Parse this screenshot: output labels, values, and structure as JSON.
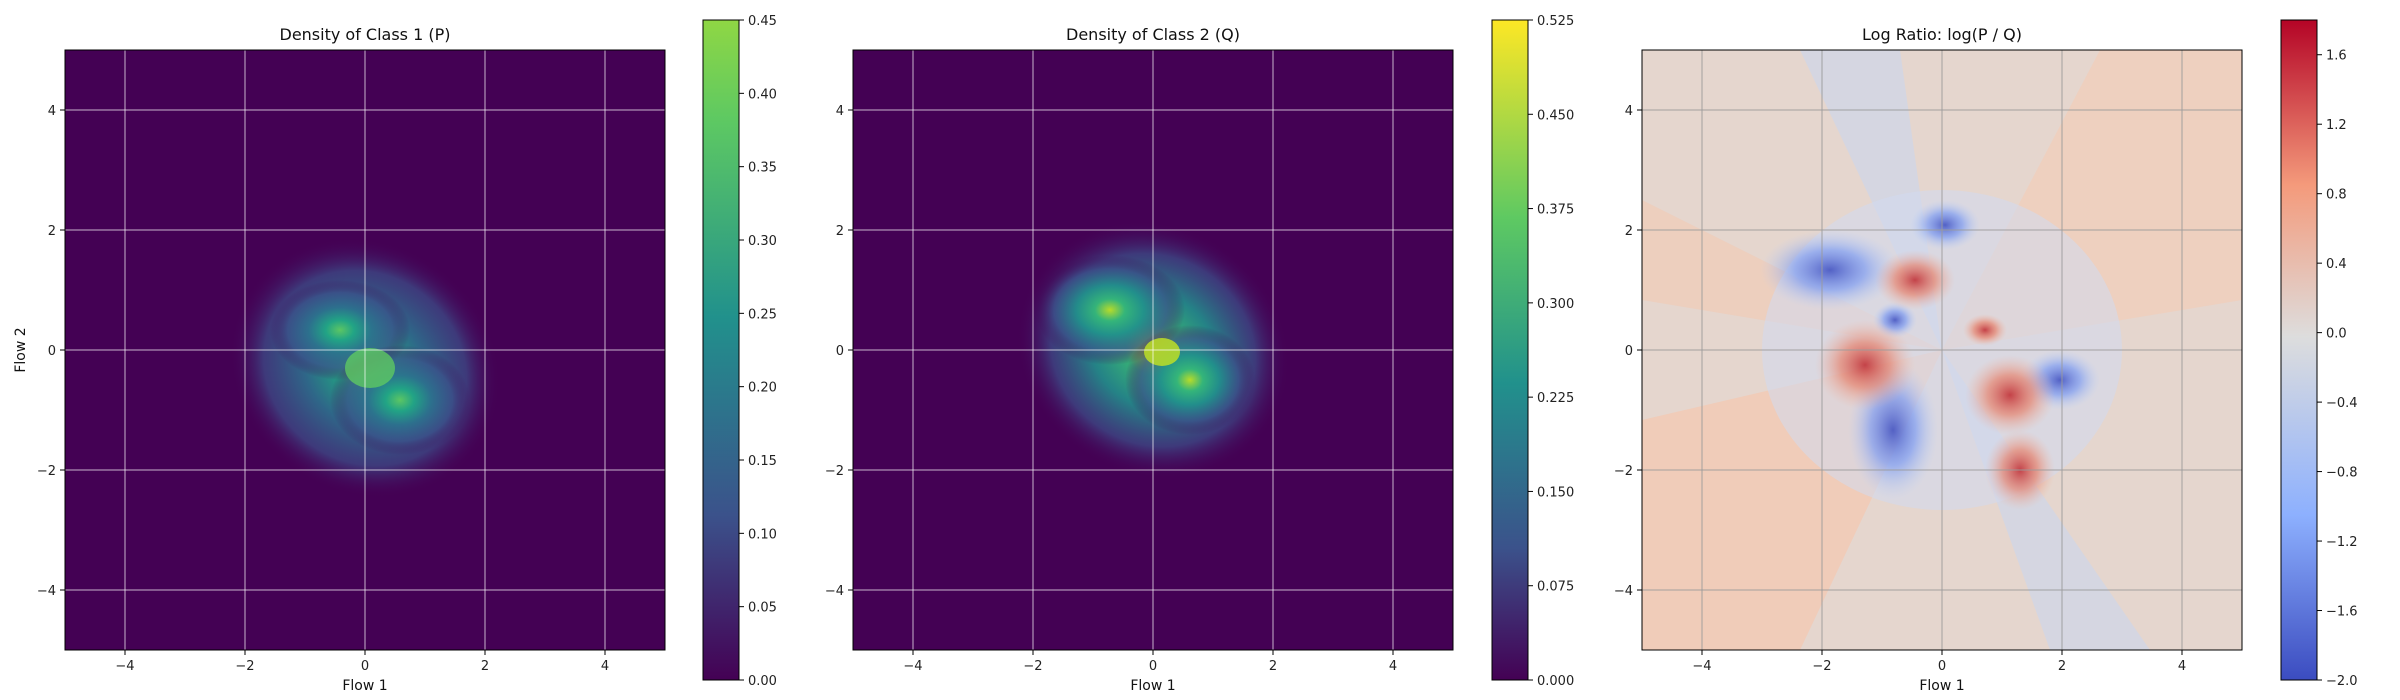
{
  "chart_data": [
    {
      "type": "heatmap",
      "title": "Density of Class 1 (P)",
      "xlabel": "Flow 1",
      "ylabel": "Flow 2",
      "xlim": [
        -5,
        5
      ],
      "ylim": [
        -5,
        5
      ],
      "xticks": [
        "−4",
        "−2",
        "0",
        "2",
        "4"
      ],
      "yticks": [
        "−4",
        "−2",
        "0",
        "2",
        "4"
      ],
      "grid": true,
      "colormap": "viridis",
      "colorbar": {
        "min": 0,
        "max": 0.45,
        "tick_values": [
          0,
          0.05,
          0.1,
          0.15,
          0.2,
          0.25,
          0.3,
          0.35,
          0.4,
          0.45
        ],
        "tick_labels": [
          "0.00",
          "0.05",
          "0.10",
          "0.15",
          "0.20",
          "0.25",
          "0.30",
          "0.35",
          "0.40",
          "0.45"
        ]
      },
      "blob": {
        "center": [
          0,
          -0.3
        ],
        "spread": [
          1.1,
          0.9
        ],
        "peak": 0.43
      }
    },
    {
      "type": "heatmap",
      "title": "Density of Class 2 (Q)",
      "xlabel": "Flow 1",
      "ylabel": "",
      "xlim": [
        -5,
        5
      ],
      "ylim": [
        -5,
        5
      ],
      "xticks": [
        "−4",
        "−2",
        "0",
        "2",
        "4"
      ],
      "yticks": [
        "−4",
        "−2",
        "0",
        "2",
        "4"
      ],
      "grid": true,
      "colormap": "viridis",
      "colorbar": {
        "min": 0,
        "max": 0.525,
        "tick_values": [
          0,
          0.075,
          0.15,
          0.225,
          0.3,
          0.375,
          0.45,
          0.525
        ],
        "tick_labels": [
          "0.000",
          "0.075",
          "0.150",
          "0.225",
          "0.300",
          "0.375",
          "0.450",
          "0.525"
        ]
      },
      "blob": {
        "center": [
          0,
          0
        ],
        "spread": [
          1.0,
          0.9
        ],
        "peak": 0.5
      }
    },
    {
      "type": "heatmap",
      "title": "Log Ratio: log(P / Q)",
      "xlabel": "Flow 1",
      "ylabel": "",
      "xlim": [
        -5,
        5
      ],
      "ylim": [
        -5,
        5
      ],
      "xticks": [
        "−4",
        "−2",
        "0",
        "2",
        "4"
      ],
      "yticks": [
        "−4",
        "−2",
        "0",
        "2",
        "4"
      ],
      "grid": true,
      "colormap": "coolwarm",
      "colorbar": {
        "min": -2.0,
        "max": 1.8,
        "tick_values": [
          -2.0,
          -1.6,
          -1.2,
          -0.8,
          -0.4,
          0.0,
          0.4,
          0.8,
          1.2,
          1.6
        ],
        "tick_labels": [
          "−2.0",
          "−1.6",
          "−1.2",
          "−0.8",
          "−0.4",
          "0.0",
          "0.4",
          "0.8",
          "1.2",
          "1.6"
        ]
      }
    }
  ]
}
